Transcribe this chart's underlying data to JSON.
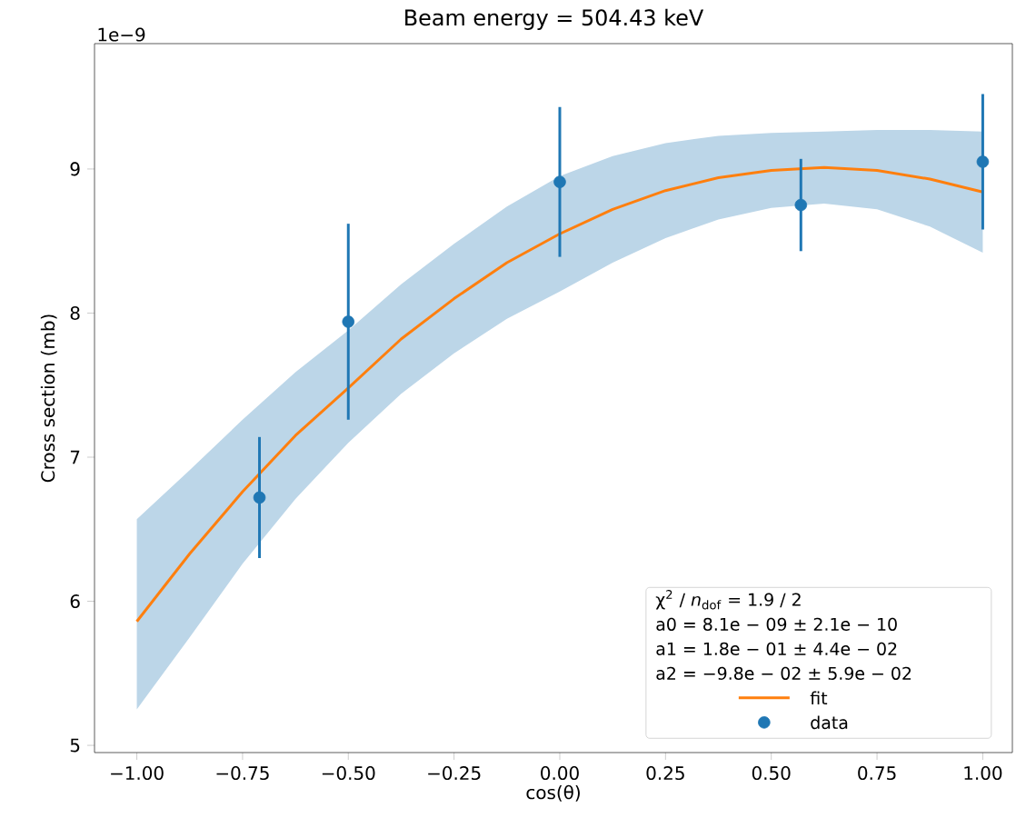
{
  "chart_data": {
    "type": "scatter",
    "title": "Beam energy = 504.43 keV",
    "xlabel": "cos(θ)",
    "ylabel": "Cross section (mb)",
    "annotations": [
      "1e−9",
      "χ$^{2}$ / *n*$_{dof}$ = 1.9 / 2",
      "a0 = 8.1e − 09 ± 2.1e − 10",
      "a1 = 1.8e − 01 ± 4.4e − 02",
      "a2 = −9.8e − 02 ± 5.9e − 02"
    ],
    "xlim": [
      -1.1,
      1.07
    ],
    "ylim": [
      4.95,
      9.87
    ],
    "xticks": [
      {
        "value": -1,
        "label": "−1.00"
      },
      {
        "value": -0.75,
        "label": "−0.75"
      },
      {
        "value": -0.5,
        "label": "−0.50"
      },
      {
        "value": -0.25,
        "label": "−0.25"
      },
      {
        "value": 0,
        "label": "0.00"
      },
      {
        "value": 0.25,
        "label": "0.25"
      },
      {
        "value": 0.5,
        "label": "0.50"
      },
      {
        "value": 0.75,
        "label": "0.75"
      },
      {
        "value": 1,
        "label": "1.00"
      }
    ],
    "yticks": [
      5,
      6,
      7,
      8,
      9
    ],
    "grid": false,
    "legend": "bottom right",
    "series": [
      {
        "name": "fit",
        "type": "line",
        "color": "#ff7f0e",
        "line_style": "solid",
        "x": [
          -1,
          -0.875,
          -0.75,
          -0.625,
          -0.5,
          -0.375,
          -0.25,
          -0.125,
          0,
          0.125,
          0.25,
          0.375,
          0.5,
          0.625,
          0.75,
          0.875,
          1
        ],
        "values": [
          5.86,
          6.33,
          6.76,
          7.15,
          7.48,
          7.82,
          8.1,
          8.35,
          8.55,
          8.72,
          8.85,
          8.94,
          8.99,
          9.01,
          8.99,
          8.93,
          8.84
        ],
        "lower": [
          5.25,
          5.75,
          6.26,
          6.71,
          7.1,
          7.44,
          7.72,
          7.96,
          8.15,
          8.35,
          8.52,
          8.65,
          8.73,
          8.76,
          8.72,
          8.6,
          8.42
        ],
        "upper": [
          6.57,
          6.91,
          7.26,
          7.59,
          7.88,
          8.2,
          8.48,
          8.74,
          8.95,
          9.09,
          9.18,
          9.23,
          9.25,
          9.26,
          9.27,
          9.27,
          9.26
        ]
      },
      {
        "name": "data",
        "color": "#1f77b4",
        "marker": "circle",
        "x": [
          -0.71,
          -0.5,
          0,
          0.57,
          1.0
        ],
        "values": [
          6.72,
          7.94,
          8.91,
          8.75,
          9.05
        ],
        "errors": [
          0.42,
          0.68,
          0.52,
          0.32,
          0.47
        ]
      }
    ]
  }
}
